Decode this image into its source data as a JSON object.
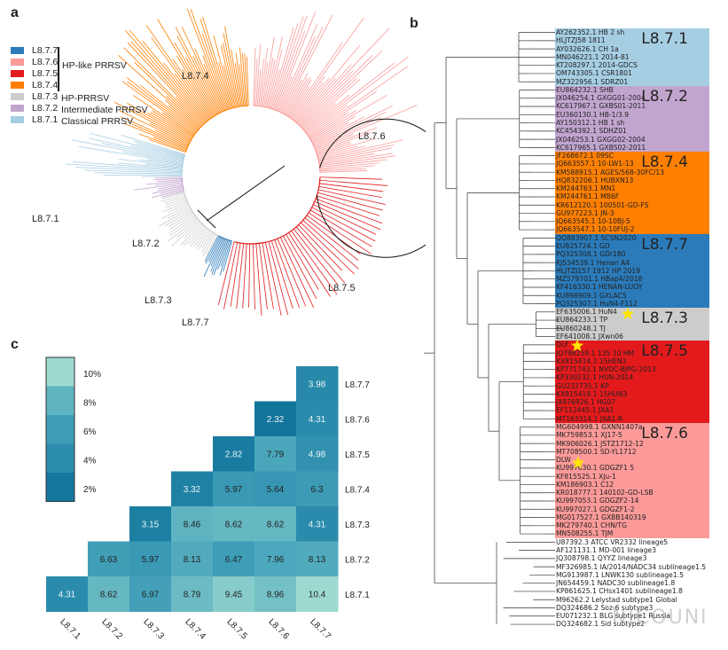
{
  "panels": {
    "a": "a",
    "b": "b",
    "c": "c"
  },
  "colors": {
    "L8.7.7": "#2b7bba",
    "L8.7.6": "#fb9a99",
    "L8.7.5": "#e31a1c",
    "L8.7.4": "#ff7f00",
    "L8.7.3": "#cccccc",
    "L8.7.2": "#c2a5cf",
    "L8.7.1": "#a6cee3"
  },
  "legend": {
    "items": [
      "L8.7.7",
      "L8.7.6",
      "L8.7.5",
      "L8.7.4",
      "L8.7.3",
      "L8.7.2",
      "L8.7.1"
    ],
    "groups": {
      "hp_like": "HP-like PRRSV",
      "hp": "HP-PRRSV",
      "intermediate": "Intermediate PRRSV",
      "classical": "Classical PRRSV"
    }
  },
  "circular_tree_labels": [
    "L8.7.4",
    "L8.7.6",
    "L8.7.1",
    "L8.7.2",
    "L8.7.5",
    "L8.7.3",
    "L8.7.7"
  ],
  "tree_b": {
    "clades": [
      {
        "name": "L8.7.1",
        "tips": [
          "AY262352.1 HB 2 sh",
          "HLJTZJ58 1811",
          "AY032626.1 CH 1a",
          "MN046221.1 2014-81",
          "KT208297.1 2014-GDCS",
          "OM743305.1 CSR1801",
          "MZ322956.1 SDRZ01"
        ]
      },
      {
        "name": "L8.7.2",
        "tips": [
          "EU864232.1 SHB",
          "JX046254.1 GXGG01-2004",
          "KC617967.1 GXBS01-2011",
          "EU360130.1 HB-1/3.9",
          "AY150312.1 HB 1 sh",
          "KC454392.1 SDHZ01",
          "JX046253.1 GXGG02-2004",
          "KC617965.1 GXBS02-2011"
        ]
      },
      {
        "name": "L8.7.4",
        "tips": [
          "JF268672.1 09SC",
          "JQ663557.1 10-LW1-13",
          "KM588915.1 AGES/568-30FC/13",
          "HQ832206.1 HUBXN13",
          "KM244763.1 MN1",
          "KM244761.1 MB6F",
          "KR612120.1 100501-GD-FS",
          "GU977223.1 JN-3",
          "JQ663545.1 10-10BJ-5",
          "JQ663547.1 10-10FUJ-2"
        ]
      },
      {
        "name": "L8.7.7",
        "tips": [
          "OQ883907.1 SCSN2020",
          "EU825724.1 GD",
          "PQ325308.1 GDr180",
          "KJ534539.1 Henan A4",
          "HLJTZJ157 1912 HP 2019",
          "MZ579701.1 HBap4/2018",
          "KF416330.1 HENAN-LUOY",
          "KU898909.1 GXLAC5",
          "PQ325307.1 HuN4-F112"
        ]
      },
      {
        "name": "L8.7.3",
        "tips": [
          "EF635006.1 HuN4",
          "EU864233.1 TP",
          "EU860248.1 TJ",
          "EF641008.1 JXwn06"
        ]
      },
      {
        "name": "L8.7.5",
        "tips": [
          "DLF",
          "JQ798259.1 135 10 HM",
          "KX815414.1 15HEN3",
          "KP771743.1 NVDC-BJPG-2013",
          "KP330232.1 HUN-2014",
          "GU232735.1 KP",
          "KX815418.1 15HUN3",
          "JX876926.1 HG07",
          "EF112445.1 JXA1",
          "MT163314.1 JXA1-R"
        ]
      },
      {
        "name": "L8.7.6",
        "tips": [
          "MG604998.1 GXNN1407a",
          "MK759853.1 XJ17-5",
          "MK906026.1 JSTZ1712-12",
          "MT708500.1 SD-YL1712",
          "DLW",
          "KU997030.1 GDGZF1 5",
          "KF815525.1 XJu-1",
          "KM186903.1 C12",
          "KR018777.1 140102-GD-LSB",
          "KU997053.1 GDGZF2-14",
          "KU997027.1 GDGZF1-2",
          "MG017527.1 GXBB140319",
          "MK279740.1 CHN/TG",
          "MN508255.1 TJM"
        ]
      }
    ],
    "outgroup": [
      "U87392.3 ATCC VR2332 lineage5",
      "AF121131.1 MD-001 lineage3",
      "JQ308798.1 QYYZ lineage3",
      "MF326985.1 IA/2014/NADC34 sublineage1.5",
      "MG913987.1 LNWK130 sublineage1.5",
      "JN654459.1 NADC30 sublineage1.8",
      "KP861625.1 CHsx1401 sublineage1.8",
      "M96262.2 Lelystad subtype1 Global",
      "DQ324686.2 Soz-6 subtype3",
      "EU071232.1 BLG subtype1 Russia",
      "DQ324682.1 Sid subtype2"
    ],
    "starred_tips": [
      "EF635006.1 HuN4",
      "DLF",
      "DLW"
    ]
  },
  "watermark": "NICOUNI",
  "chart_data": {
    "type": "heatmap",
    "x_labels": [
      "L8.7.1",
      "L8.7.2",
      "L8.7.3",
      "L8.7.4",
      "L8.7.5",
      "L8.7.6",
      "L8.7.7"
    ],
    "y_labels_top_to_bottom": [
      "L8.7.7",
      "L8.7.6",
      "L8.7.5",
      "L8.7.4",
      "L8.7.3",
      "L8.7.2",
      "L8.7.1"
    ],
    "rows": [
      {
        "y": "L8.7.7",
        "start_col": 6,
        "values": [
          "3.98"
        ]
      },
      {
        "y": "L8.7.6",
        "start_col": 5,
        "values": [
          "2.32",
          "4.31"
        ]
      },
      {
        "y": "L8.7.5",
        "start_col": 4,
        "values": [
          "2.82",
          "7.79",
          "4.98"
        ]
      },
      {
        "y": "L8.7.4",
        "start_col": 3,
        "values": [
          "3.32",
          "5.97",
          "5.64",
          "6.3"
        ]
      },
      {
        "y": "L8.7.3",
        "start_col": 2,
        "values": [
          "3.15",
          "8.46",
          "8.62",
          "8.62",
          "4.31"
        ]
      },
      {
        "y": "L8.7.2",
        "start_col": 1,
        "values": [
          "6.63",
          "5.97",
          "8.13",
          "6.47",
          "7.96",
          "8.13"
        ]
      },
      {
        "y": "L8.7.1",
        "start_col": 0,
        "values": [
          "4.31",
          "8.62",
          "6.97",
          "8.79",
          "9.45",
          "8.96",
          "10.4"
        ]
      }
    ],
    "colorbar": {
      "ticks": [
        "10%",
        "8%",
        "6%",
        "4%",
        "2%"
      ],
      "range": [
        2,
        10
      ]
    }
  }
}
